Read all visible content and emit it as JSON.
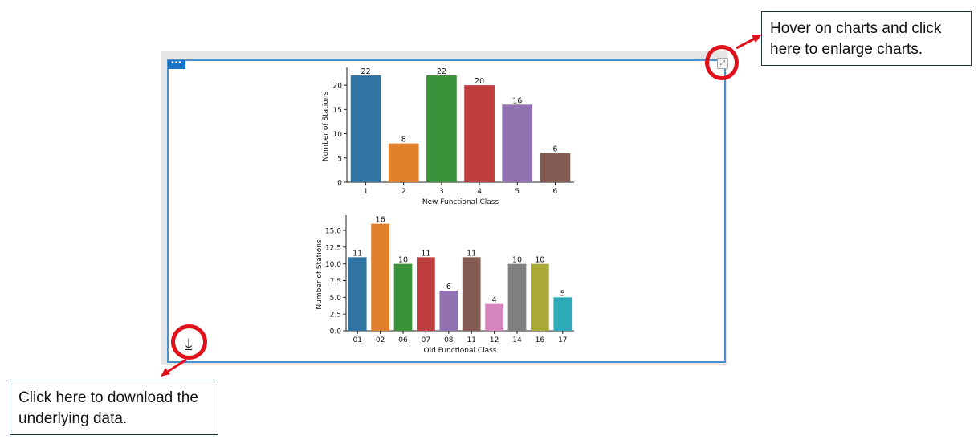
{
  "toolbar": {
    "more_label": "•••",
    "expand_icon": "expand-icon",
    "download_icon": "download-icon",
    "download_glyph": "⤓",
    "expand_glyph": "⤢"
  },
  "callouts": {
    "enlarge": "Hover on charts and click here to enlarge charts.",
    "download": "Click here to download the underlying data."
  },
  "colors": {
    "frame_border": "#4a90c9",
    "highlight_circle": "#e0111a",
    "callout_border": "#1c3a45"
  },
  "chart_data": [
    {
      "type": "bar",
      "categories": [
        "1",
        "2",
        "3",
        "4",
        "5",
        "6"
      ],
      "values": [
        22,
        8,
        22,
        20,
        16,
        6
      ],
      "data_labels": [
        "22",
        "8",
        "22",
        "20",
        "16",
        "6"
      ],
      "colors": [
        "#3274a1",
        "#e1812c",
        "#3a923a",
        "#c03d3e",
        "#9372b2",
        "#845b53"
      ],
      "xlabel": "New Functional Class",
      "ylabel": "Number of Stations",
      "ylim": [
        0,
        23
      ],
      "yticks": [
        0,
        5,
        10,
        15,
        20
      ],
      "ytick_labels": [
        "0",
        "5",
        "10",
        "15",
        "20"
      ],
      "grid": false
    },
    {
      "type": "bar",
      "categories": [
        "01",
        "02",
        "06",
        "07",
        "08",
        "11",
        "12",
        "14",
        "16",
        "17"
      ],
      "values": [
        11,
        16,
        10,
        11,
        6,
        11,
        4,
        10,
        10,
        5
      ],
      "data_labels": [
        "11",
        "16",
        "10",
        "11",
        "6",
        "11",
        "4",
        "10",
        "10",
        "5"
      ],
      "colors": [
        "#3274a1",
        "#e1812c",
        "#3a923a",
        "#c03d3e",
        "#9372b2",
        "#845b53",
        "#d684bd",
        "#7f7f7f",
        "#a9aa35",
        "#2eabb8"
      ],
      "xlabel": "Old Functional Class",
      "ylabel": "Number of Stations",
      "ylim": [
        0,
        16.8
      ],
      "yticks": [
        0,
        2.5,
        5,
        7.5,
        10,
        12.5,
        15
      ],
      "ytick_labels": [
        "0.0",
        "2.5",
        "5.0",
        "7.5",
        "10.0",
        "12.5",
        "15.0"
      ],
      "grid": false
    }
  ]
}
